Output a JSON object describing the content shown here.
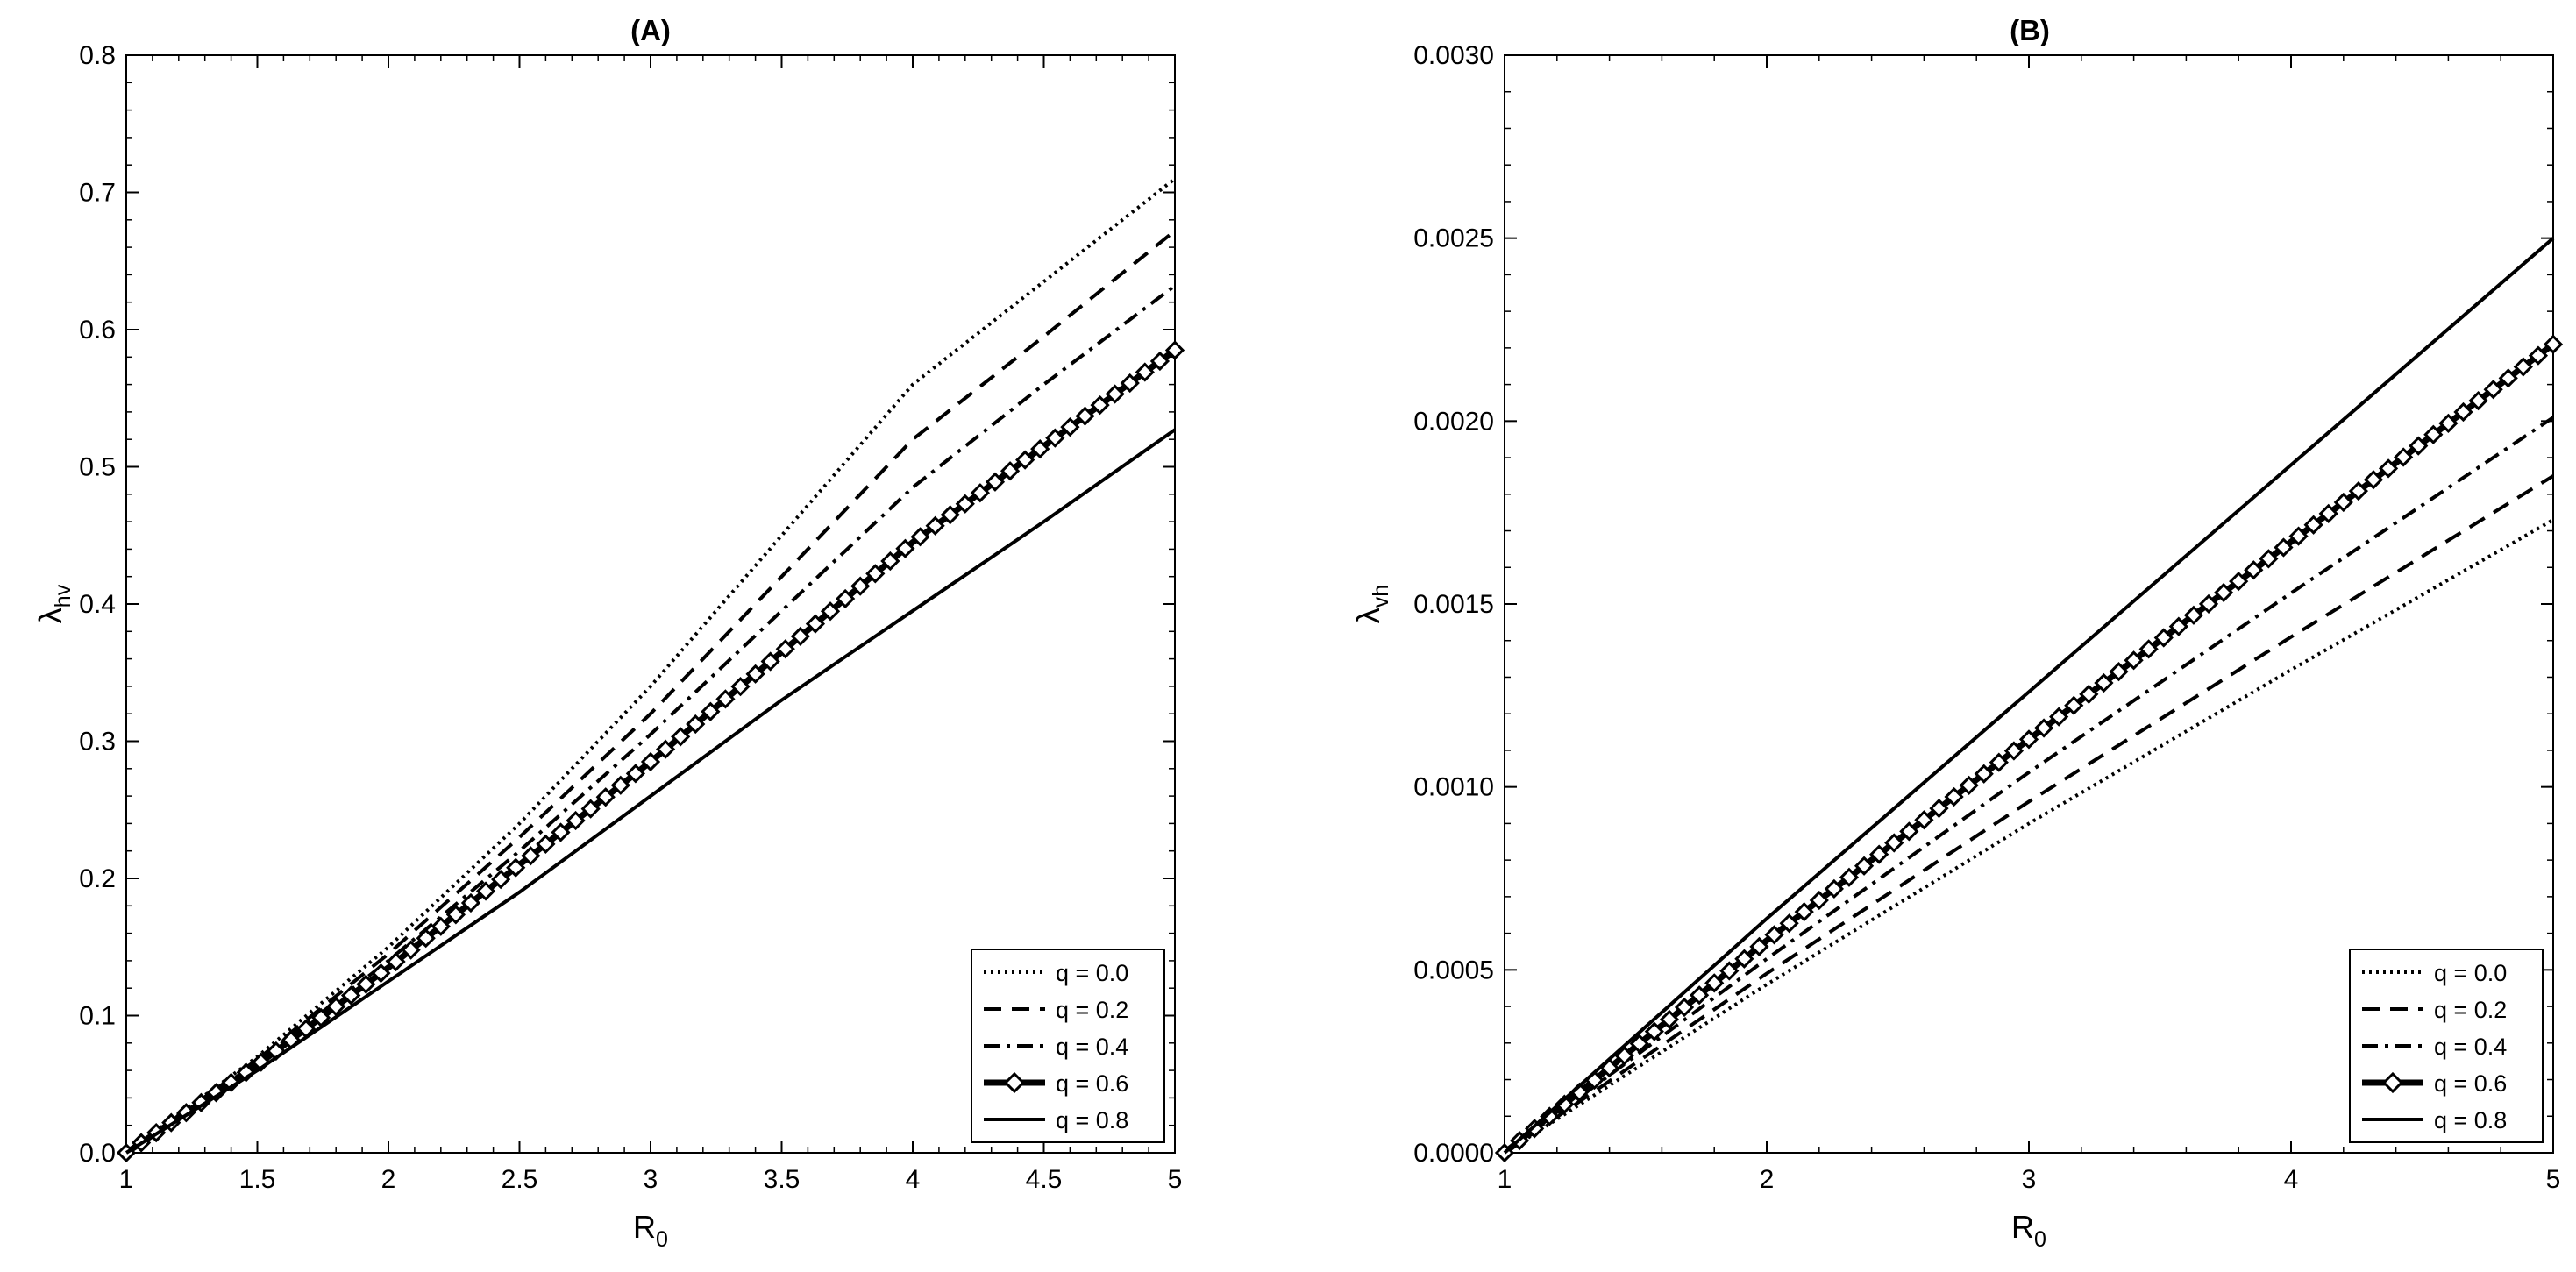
{
  "chart_data": [
    {
      "type": "line",
      "title": "(A)",
      "xlabel": {
        "main": "R",
        "sub": "0"
      },
      "ylabel": {
        "main": "λ",
        "sub": "hv"
      },
      "xlim": [
        1,
        5
      ],
      "ylim": [
        0,
        0.8
      ],
      "xticks": [
        1,
        1.5,
        2,
        2.5,
        3,
        3.5,
        4,
        4.5,
        5
      ],
      "xtick_labels": [
        "1",
        "1.5",
        "2",
        "2.5",
        "3",
        "3.5",
        "4",
        "4.5",
        "5"
      ],
      "yticks": [
        0,
        0.1,
        0.2,
        0.3,
        0.4,
        0.5,
        0.6,
        0.7,
        0.8
      ],
      "ytick_labels": [
        "0.0",
        "0.1",
        "0.2",
        "0.3",
        "0.4",
        "0.5",
        "0.6",
        "0.7",
        "0.8"
      ],
      "grid": false,
      "legend_position": "bottom-right",
      "x": [
        1,
        1.5,
        2,
        2.5,
        3,
        3.5,
        4,
        4.5,
        5
      ],
      "series": [
        {
          "name": "q = 0.0",
          "style": "dotted",
          "values": [
            0,
            0.07,
            0.15,
            0.24,
            0.34,
            0.45,
            0.56,
            0.635,
            0.71
          ]
        },
        {
          "name": "q = 0.2",
          "style": "dashed",
          "values": [
            0,
            0.068,
            0.145,
            0.23,
            0.32,
            0.42,
            0.52,
            0.595,
            0.672
          ]
        },
        {
          "name": "q = 0.4",
          "style": "dashdot",
          "values": [
            0,
            0.066,
            0.14,
            0.22,
            0.305,
            0.395,
            0.485,
            0.56,
            0.632
          ]
        },
        {
          "name": "q = 0.6",
          "style": "diamond",
          "values": [
            0,
            0.064,
            0.135,
            0.21,
            0.285,
            0.365,
            0.445,
            0.515,
            0.585
          ]
        },
        {
          "name": "q = 0.8",
          "style": "solid",
          "values": [
            0,
            0.06,
            0.125,
            0.19,
            0.26,
            0.33,
            0.395,
            0.46,
            0.527
          ]
        }
      ]
    },
    {
      "type": "line",
      "title": "(B)",
      "xlabel": {
        "main": "R",
        "sub": "0"
      },
      "ylabel": {
        "main": "λ",
        "sub": "vh"
      },
      "xlim": [
        1,
        5
      ],
      "ylim": [
        0,
        0.003
      ],
      "xticks": [
        1,
        2,
        3,
        4,
        5
      ],
      "xtick_labels": [
        "1",
        "2",
        "3",
        "4",
        "5"
      ],
      "yticks": [
        0,
        0.0005,
        0.001,
        0.0015,
        0.002,
        0.0025,
        0.003
      ],
      "ytick_labels": [
        "0.0000",
        "0.0005",
        "0.0010",
        "0.0015",
        "0.0020",
        "0.0025",
        "0.0030"
      ],
      "grid": false,
      "legend_position": "bottom-right",
      "x": [
        1,
        2,
        3,
        4,
        5
      ],
      "series": [
        {
          "name": "q = 0.0",
          "style": "dotted",
          "values": [
            0,
            0.00046,
            0.0009,
            0.00132,
            0.00173
          ]
        },
        {
          "name": "q = 0.2",
          "style": "dashed",
          "values": [
            0,
            0.00049,
            0.00096,
            0.00141,
            0.00185
          ]
        },
        {
          "name": "q = 0.4",
          "style": "dashdot",
          "values": [
            0,
            0.00053,
            0.00104,
            0.00153,
            0.00201
          ]
        },
        {
          "name": "q = 0.6",
          "style": "diamond",
          "values": [
            0,
            0.00058,
            0.00113,
            0.00167,
            0.00221
          ]
        },
        {
          "name": "q = 0.8",
          "style": "solid",
          "values": [
            0,
            0.00064,
            0.00126,
            0.00188,
            0.0025
          ]
        }
      ]
    }
  ]
}
